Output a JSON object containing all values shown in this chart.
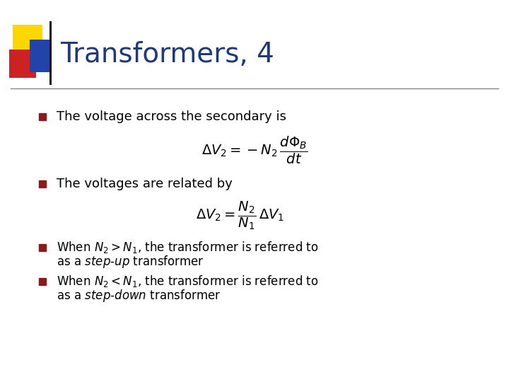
{
  "title": "Transformers, 4",
  "title_color": "#1F3A7A",
  "title_fontsize": 28,
  "background_color": "#FFFFFF",
  "bullet_color": "#8B1A1A",
  "text_color": "#000000",
  "bullet1": "The voltage across the secondary is",
  "formula1": "$\\Delta V_2 = -N_2\\,\\dfrac{d\\Phi_B}{dt}$",
  "bullet2": "The voltages are related by",
  "formula2": "$\\Delta V_2 = \\dfrac{N_2}{N_1}\\,\\Delta V_1$",
  "square_yellow": "#FFD700",
  "square_red": "#CC2222",
  "square_blue": "#2244AA",
  "line_color": "#888888"
}
